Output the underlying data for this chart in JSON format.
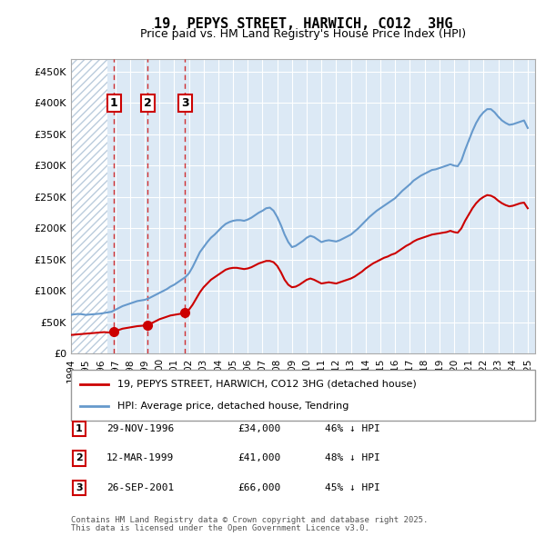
{
  "title": "19, PEPYS STREET, HARWICH, CO12  3HG",
  "subtitle": "Price paid vs. HM Land Registry's House Price Index (HPI)",
  "legend_line1": "19, PEPYS STREET, HARWICH, CO12 3HG (detached house)",
  "legend_line2": "HPI: Average price, detached house, Tendring",
  "transactions": [
    {
      "num": 1,
      "date": "29-NOV-1996",
      "price": 34000,
      "pct": "46%",
      "year": 1996.91
    },
    {
      "num": 2,
      "date": "12-MAR-1999",
      "price": 41000,
      "pct": "48%",
      "year": 1999.19
    },
    {
      "num": 3,
      "date": "26-SEP-2001",
      "price": 66000,
      "pct": "45%",
      "year": 2001.73
    }
  ],
  "footer1": "Contains HM Land Registry data © Crown copyright and database right 2025.",
  "footer2": "This data is licensed under the Open Government Licence v3.0.",
  "hpi_color": "#6699cc",
  "price_color": "#cc0000",
  "bg_color": "#dce9f5",
  "hatch_color": "#bbccdd",
  "ylim": [
    0,
    470000
  ],
  "yticks": [
    0,
    50000,
    100000,
    150000,
    200000,
    250000,
    300000,
    350000,
    400000,
    450000
  ],
  "hpi_data": {
    "years": [
      1994.0,
      1994.25,
      1994.5,
      1994.75,
      1995.0,
      1995.25,
      1995.5,
      1995.75,
      1996.0,
      1996.25,
      1996.5,
      1996.75,
      1997.0,
      1997.25,
      1997.5,
      1997.75,
      1998.0,
      1998.25,
      1998.5,
      1998.75,
      1999.0,
      1999.25,
      1999.5,
      1999.75,
      2000.0,
      2000.25,
      2000.5,
      2000.75,
      2001.0,
      2001.25,
      2001.5,
      2001.75,
      2002.0,
      2002.25,
      2002.5,
      2002.75,
      2003.0,
      2003.25,
      2003.5,
      2003.75,
      2004.0,
      2004.25,
      2004.5,
      2004.75,
      2005.0,
      2005.25,
      2005.5,
      2005.75,
      2006.0,
      2006.25,
      2006.5,
      2006.75,
      2007.0,
      2007.25,
      2007.5,
      2007.75,
      2008.0,
      2008.25,
      2008.5,
      2008.75,
      2009.0,
      2009.25,
      2009.5,
      2009.75,
      2010.0,
      2010.25,
      2010.5,
      2010.75,
      2011.0,
      2011.25,
      2011.5,
      2011.75,
      2012.0,
      2012.25,
      2012.5,
      2012.75,
      2013.0,
      2013.25,
      2013.5,
      2013.75,
      2014.0,
      2014.25,
      2014.5,
      2014.75,
      2015.0,
      2015.25,
      2015.5,
      2015.75,
      2016.0,
      2016.25,
      2016.5,
      2016.75,
      2017.0,
      2017.25,
      2017.5,
      2017.75,
      2018.0,
      2018.25,
      2018.5,
      2018.75,
      2019.0,
      2019.25,
      2019.5,
      2019.75,
      2020.0,
      2020.25,
      2020.5,
      2020.75,
      2021.0,
      2021.25,
      2021.5,
      2021.75,
      2022.0,
      2022.25,
      2022.5,
      2022.75,
      2023.0,
      2023.25,
      2023.5,
      2023.75,
      2024.0,
      2024.25,
      2024.5,
      2024.75,
      2025.0
    ],
    "values": [
      62000,
      63000,
      63500,
      63000,
      62000,
      62500,
      63000,
      63500,
      64000,
      65000,
      66000,
      67000,
      70000,
      73000,
      76000,
      78000,
      80000,
      82000,
      84000,
      85000,
      86000,
      88000,
      91000,
      94000,
      97000,
      100000,
      103000,
      107000,
      110000,
      114000,
      118000,
      122000,
      128000,
      138000,
      150000,
      162000,
      170000,
      178000,
      185000,
      190000,
      196000,
      202000,
      207000,
      210000,
      212000,
      213000,
      213000,
      212000,
      214000,
      217000,
      221000,
      225000,
      228000,
      232000,
      233000,
      228000,
      218000,
      205000,
      190000,
      178000,
      170000,
      172000,
      176000,
      180000,
      185000,
      188000,
      186000,
      182000,
      178000,
      180000,
      181000,
      180000,
      179000,
      181000,
      184000,
      187000,
      190000,
      195000,
      200000,
      206000,
      212000,
      218000,
      223000,
      228000,
      232000,
      236000,
      240000,
      244000,
      248000,
      254000,
      260000,
      265000,
      270000,
      276000,
      280000,
      284000,
      287000,
      290000,
      293000,
      294000,
      296000,
      298000,
      300000,
      302000,
      300000,
      299000,
      308000,
      325000,
      340000,
      355000,
      368000,
      378000,
      385000,
      390000,
      390000,
      385000,
      378000,
      372000,
      368000,
      365000,
      366000,
      368000,
      370000,
      372000,
      360000
    ]
  },
  "price_data": {
    "years": [
      1994.0,
      1994.25,
      1994.5,
      1994.75,
      1995.0,
      1995.25,
      1995.5,
      1995.75,
      1996.0,
      1996.25,
      1996.5,
      1996.75,
      1997.0,
      1997.25,
      1997.5,
      1997.75,
      1998.0,
      1998.25,
      1998.5,
      1998.75,
      1999.0,
      1999.25,
      1999.5,
      1999.75,
      2000.0,
      2000.25,
      2000.5,
      2000.75,
      2001.0,
      2001.25,
      2001.5,
      2001.75,
      2002.0,
      2002.25,
      2002.5,
      2002.75,
      2003.0,
      2003.25,
      2003.5,
      2003.75,
      2004.0,
      2004.25,
      2004.5,
      2004.75,
      2005.0,
      2005.25,
      2005.5,
      2005.75,
      2006.0,
      2006.25,
      2006.5,
      2006.75,
      2007.0,
      2007.25,
      2007.5,
      2007.75,
      2008.0,
      2008.25,
      2008.5,
      2008.75,
      2009.0,
      2009.25,
      2009.5,
      2009.75,
      2010.0,
      2010.25,
      2010.5,
      2010.75,
      2011.0,
      2011.25,
      2011.5,
      2011.75,
      2012.0,
      2012.25,
      2012.5,
      2012.75,
      2013.0,
      2013.25,
      2013.5,
      2013.75,
      2014.0,
      2014.25,
      2014.5,
      2014.75,
      2015.0,
      2015.25,
      2015.5,
      2015.75,
      2016.0,
      2016.25,
      2016.5,
      2016.75,
      2017.0,
      2017.25,
      2017.5,
      2017.75,
      2018.0,
      2018.25,
      2018.5,
      2018.75,
      2019.0,
      2019.25,
      2019.5,
      2019.75,
      2020.0,
      2020.25,
      2020.5,
      2020.75,
      2021.0,
      2021.25,
      2021.5,
      2021.75,
      2022.0,
      2022.25,
      2022.5,
      2022.75,
      2023.0,
      2023.25,
      2023.5,
      2023.75,
      2024.0,
      2024.25,
      2024.5,
      2024.75,
      2025.0
    ],
    "values": [
      30000,
      30500,
      31000,
      31500,
      32000,
      32500,
      33000,
      33500,
      34000,
      34500,
      34000,
      34000,
      36000,
      38000,
      40000,
      41000,
      42000,
      43000,
      44000,
      44500,
      45000,
      46000,
      49000,
      52000,
      55000,
      57000,
      59000,
      61000,
      62000,
      63000,
      64000,
      66000,
      70000,
      78000,
      88000,
      98000,
      106000,
      112000,
      118000,
      122000,
      126000,
      130000,
      134000,
      136000,
      137000,
      137000,
      136000,
      135000,
      136000,
      138000,
      141000,
      144000,
      146000,
      148000,
      148000,
      146000,
      140000,
      130000,
      118000,
      110000,
      106000,
      107000,
      110000,
      114000,
      118000,
      120000,
      118000,
      115000,
      112000,
      113000,
      114000,
      113000,
      112000,
      114000,
      116000,
      118000,
      120000,
      123000,
      127000,
      131000,
      136000,
      140000,
      144000,
      147000,
      150000,
      153000,
      155000,
      158000,
      160000,
      164000,
      168000,
      172000,
      175000,
      179000,
      182000,
      184000,
      186000,
      188000,
      190000,
      191000,
      192000,
      193000,
      194000,
      196000,
      194000,
      193000,
      200000,
      212000,
      222000,
      232000,
      240000,
      246000,
      250000,
      253000,
      252000,
      249000,
      244000,
      240000,
      237000,
      235000,
      236000,
      238000,
      240000,
      241000,
      232000
    ]
  }
}
